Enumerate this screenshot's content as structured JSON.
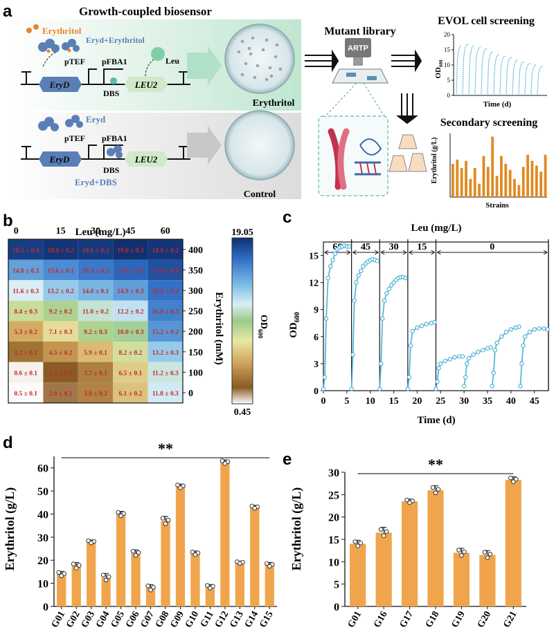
{
  "panel_a": {
    "letter": "a",
    "title": "Growth-coupled biosensor",
    "erythritol_label": "Erythritol",
    "eryd_erythritol": "Eryd+Erythritol",
    "ptef": "pTEF",
    "pfba1": "pFBA1",
    "leu": "Leu",
    "dbs": "DBS",
    "gene_eryd": "EryD",
    "gene_leu2": "LEU2",
    "plate_erythritol": "Erythritol",
    "eryd": "Eryd",
    "eryd_dbs": "Eryd+DBS",
    "plate_control": "Control",
    "mutant_library": "Mutant library",
    "artp": "ARTP",
    "evol_title": "EVOL cell screening",
    "evol_ylabel": "OD",
    "evol_ysub": "600",
    "evol_xlabel": "Time (d)",
    "evol_yticks": [
      "0",
      "5",
      "10",
      "15",
      "20"
    ],
    "secondary_title": "Secondary screening",
    "secondary_ylabel": "Erythritol (g/L)",
    "secondary_xlabel": "Strains",
    "secondary_bars": [
      0.55,
      0.62,
      0.48,
      0.6,
      0.3,
      0.48,
      0.22,
      0.68,
      0.5,
      1.0,
      0.35,
      0.68,
      0.55,
      0.45,
      0.3,
      0.2,
      0.5,
      0.7,
      0.6,
      0.52,
      0.42,
      0.7
    ]
  },
  "panel_b": {
    "letter": "b",
    "chart_data": {
      "type": "heatmap",
      "title": "",
      "xlabel": "Leu (mg/L)",
      "ylabel": "Erythritol (mM)",
      "x_categories": [
        "0",
        "15",
        "30",
        "45",
        "60"
      ],
      "y_categories": [
        "400",
        "350",
        "300",
        "250",
        "200",
        "150",
        "100",
        "0"
      ],
      "cells": [
        [
          "18.5 ± 0.4",
          "18.8 ± 0.2",
          "18.6 ± 0.3",
          "19.0 ± 0.3",
          "18.8 ± 0.2"
        ],
        [
          "14.8 ± 0.3",
          "15.6 ± 0.1",
          "16.3 ± 0.2",
          "17.0 ± 0.2",
          "17.8 ± 0.4"
        ],
        [
          "11.6 ± 0.3",
          "13.2 ± 0.2",
          "14.0 ± 0.1",
          "14.9 ± 0.3",
          "16.6 ± 0.3"
        ],
        [
          "8.4 ± 0.3",
          "9.2 ± 0.2",
          "11.0 ± 0.2",
          "12.2 ± 0.2",
          "16.0 ± 0.3"
        ],
        [
          "5.3 ± 0.2",
          "7.1 ± 0.3",
          "9.2 ± 0.3",
          "10.0 ± 0.3",
          "15.2 ± 0.2"
        ],
        [
          "3.2 ± 0.1",
          "4.5 ± 0.2",
          "5.9 ± 0.1",
          "8.2 ± 0.2",
          "13.2 ± 0.3"
        ],
        [
          "0.6 ± 0.1",
          "2.3 ± 0.2",
          "3.7 ± 0.1",
          "6.5 ± 0.1",
          "11.2 ± 0.3"
        ],
        [
          "0.5 ± 0.1",
          "2.0 ± 0.1",
          "3.8 ± 0.2",
          "6.1 ± 0.2",
          "11.8 ± 0.3"
        ]
      ],
      "colorbar": {
        "max": "19.05",
        "min": "0.45",
        "label": "OD",
        "label_sub": "600"
      }
    }
  },
  "panel_c": {
    "letter": "c",
    "chart_data": {
      "type": "line",
      "title": "Leu (mg/L)",
      "xlabel": "Time (d)",
      "ylabel": "OD",
      "ylabel_sub": "600",
      "xlim": [
        0,
        48
      ],
      "ylim": [
        0,
        16.5
      ],
      "xticks": [
        0,
        5,
        10,
        15,
        20,
        25,
        30,
        35,
        40,
        45
      ],
      "yticks": [
        0,
        3,
        6,
        9,
        12,
        15
      ],
      "stage_boundaries": [
        0,
        6,
        12,
        18,
        24,
        48
      ],
      "stage_labels": [
        "60",
        "45",
        "30",
        "15",
        "0"
      ],
      "segments": [
        {
          "x": [
            0,
            0.3,
            0.6,
            1,
            1.5,
            2,
            2.5,
            3,
            3.5,
            4,
            4.5,
            5,
            5.5
          ],
          "y": [
            0.2,
            1.5,
            8,
            12.5,
            13.8,
            14.5,
            15.2,
            15.7,
            15.9,
            16.0,
            16.1,
            16.0,
            16.0
          ]
        },
        {
          "x": [
            6,
            6.3,
            6.6,
            7,
            7.5,
            8,
            8.5,
            9,
            9.5,
            10,
            10.5,
            11,
            11.5
          ],
          "y": [
            0.2,
            4,
            10,
            12,
            12.8,
            13.3,
            13.8,
            14.1,
            14.3,
            14.5,
            14.6,
            14.5,
            14.4
          ]
        },
        {
          "x": [
            12,
            12.3,
            12.6,
            13,
            13.5,
            14,
            14.5,
            15,
            15.5,
            16,
            16.5,
            17,
            17.5
          ],
          "y": [
            0.2,
            3,
            8,
            10,
            10.8,
            11.3,
            11.7,
            12.0,
            12.3,
            12.5,
            12.6,
            12.6,
            12.5
          ]
        },
        {
          "x": [
            18,
            18.3,
            18.6,
            19,
            20,
            21,
            22,
            23,
            23.7
          ],
          "y": [
            0.2,
            1.5,
            5,
            6.6,
            7.0,
            7.2,
            7.4,
            7.5,
            7.6
          ]
        },
        {
          "x": [
            24,
            24.3,
            24.6,
            25,
            26,
            27,
            28,
            29,
            29.7
          ],
          "y": [
            0.2,
            1,
            2.5,
            3,
            3.3,
            3.5,
            3.7,
            3.8,
            3.8
          ]
        },
        {
          "x": [
            30,
            30.3,
            30.6,
            31,
            32,
            33,
            34,
            35,
            35.7
          ],
          "y": [
            0.5,
            1.5,
            3,
            3.6,
            4.0,
            4.3,
            4.5,
            4.7,
            4.8
          ]
        },
        {
          "x": [
            36,
            36.3,
            36.6,
            37,
            38,
            39,
            40,
            41,
            41.7
          ],
          "y": [
            0.5,
            2,
            4.5,
            5.3,
            6.0,
            6.5,
            6.8,
            7.0,
            7.1
          ]
        },
        {
          "x": [
            42,
            42.3,
            42.6,
            43,
            44,
            45,
            46,
            47,
            47.8
          ],
          "y": [
            0.5,
            3,
            5,
            6.0,
            6.5,
            6.8,
            6.9,
            6.9,
            6.8
          ]
        }
      ]
    }
  },
  "panel_d": {
    "letter": "d",
    "chart_data": {
      "type": "bar",
      "title": "",
      "xlabel": "",
      "ylabel": "Erythritol (g/L)",
      "ylim": [
        0,
        65
      ],
      "yticks": [
        0,
        10,
        20,
        30,
        40,
        50,
        60
      ],
      "categories": [
        "G01",
        "G02",
        "G03",
        "G04",
        "G05",
        "G06",
        "G07",
        "G08",
        "G09",
        "G10",
        "G11",
        "G12",
        "G13",
        "G14",
        "G15"
      ],
      "values": [
        14,
        17.5,
        28,
        12.5,
        40,
        23,
        8,
        37,
        52,
        23,
        8.5,
        62.5,
        19,
        43,
        18
      ],
      "errors": [
        1.2,
        1.5,
        0.8,
        1.8,
        1.2,
        1.5,
        1.5,
        2,
        1,
        1,
        1,
        1,
        0.6,
        0.8,
        1
      ],
      "significance": "**"
    }
  },
  "panel_e": {
    "letter": "e",
    "chart_data": {
      "type": "bar",
      "title": "",
      "xlabel": "",
      "ylabel": "Erythritol (g/L)",
      "ylim": [
        0,
        30
      ],
      "yticks": [
        0,
        5,
        10,
        15,
        20,
        25,
        30
      ],
      "categories": [
        "G01",
        "G16",
        "G17",
        "G18",
        "G19",
        "G20",
        "G21"
      ],
      "values": [
        14,
        16.5,
        23.5,
        26,
        12,
        11.5,
        28.3
      ],
      "errors": [
        0.8,
        1.2,
        0.5,
        1,
        1,
        1,
        0.7
      ],
      "significance": "**"
    }
  },
  "colors": {
    "bar": "#f0a54c",
    "line": "#56b7d8",
    "cell_text": "#c62828",
    "dbs_arrow": "#5a7fb6",
    "orange": "#e9852b"
  }
}
